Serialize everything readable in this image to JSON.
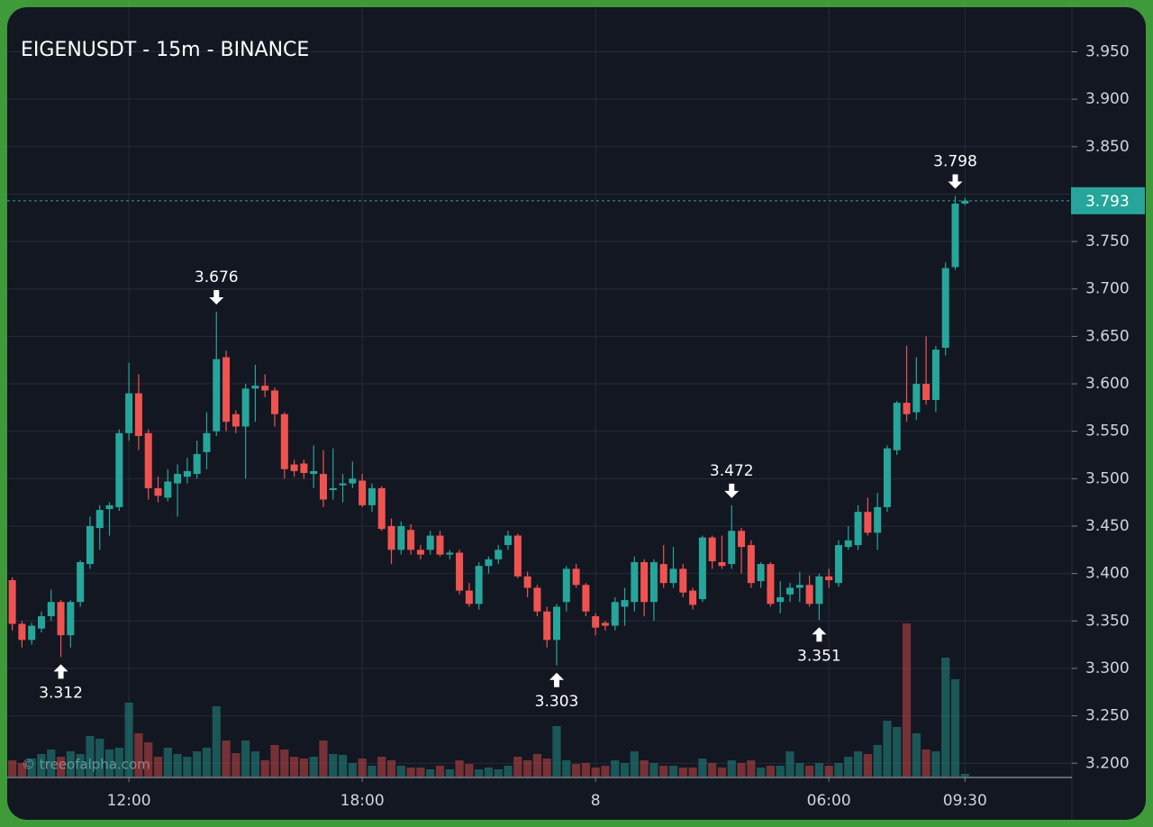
{
  "chart_data": {
    "type": "candlestick",
    "title": "EIGENUSDT - 15m - BINANCE",
    "watermark": "© treeofalpha.com",
    "up_color": "#26a69a",
    "down_color": "#ef5350",
    "last_price": 3.793,
    "last_price_color": "#26a69a",
    "grid": true,
    "x": [
      9,
      9.25,
      9.5,
      9.75,
      10,
      10.25,
      10.5,
      10.75,
      11,
      11.25,
      11.5,
      11.75,
      12,
      12.25,
      12.5,
      12.75,
      13,
      13.25,
      13.5,
      13.75,
      14,
      14.25,
      14.5,
      14.75,
      15,
      15.25,
      15.5,
      15.75,
      16,
      16.25,
      16.5,
      16.75,
      17,
      17.25,
      17.5,
      17.75,
      18,
      18.25,
      18.5,
      18.75,
      19,
      19.25,
      19.5,
      19.75,
      20,
      20.25,
      20.5,
      20.75,
      21,
      21.25,
      21.5,
      21.75,
      22,
      22.25,
      22.5,
      22.75,
      23,
      23.25,
      23.5,
      23.75,
      24,
      24.25,
      24.5,
      24.75,
      25,
      25.25,
      25.5,
      25.75,
      26,
      26.25,
      26.5,
      26.75,
      27,
      27.25,
      27.5,
      27.75,
      28,
      28.25,
      28.5,
      28.75,
      29,
      29.25,
      29.5,
      29.75,
      30,
      30.25,
      30.5,
      30.75,
      31,
      31.25,
      31.5,
      31.75,
      32,
      32.25,
      32.5,
      32.75,
      33,
      33.25,
      33.5
    ],
    "open": [
      3.393,
      3.347,
      3.33,
      3.342,
      3.355,
      3.37,
      3.335,
      3.37,
      3.41,
      3.448,
      3.468,
      3.47,
      3.548,
      3.59,
      3.548,
      3.49,
      3.48,
      3.495,
      3.502,
      3.505,
      3.528,
      3.55,
      3.628,
      3.568,
      3.555,
      3.595,
      3.598,
      3.593,
      3.568,
      3.515,
      3.516,
      3.505,
      3.505,
      3.488,
      3.493,
      3.495,
      3.498,
      3.472,
      3.49,
      3.45,
      3.425,
      3.446,
      3.425,
      3.425,
      3.44,
      3.42,
      3.422,
      3.382,
      3.368,
      3.408,
      3.415,
      3.43,
      3.44,
      3.397,
      3.385,
      3.36,
      3.33,
      3.37,
      3.405,
      3.388,
      3.355,
      3.348,
      3.345,
      3.365,
      3.37,
      3.412,
      3.37,
      3.41,
      3.39,
      3.405,
      3.382,
      3.373,
      3.438,
      3.412,
      3.41,
      3.445,
      3.43,
      3.392,
      3.41,
      3.37,
      3.378,
      3.385,
      3.388,
      3.368,
      3.397,
      3.39,
      3.428,
      3.43,
      3.465,
      3.443,
      3.47,
      3.53,
      3.58,
      3.57,
      3.6,
      3.583,
      3.638,
      3.723,
      3.79
    ],
    "high": [
      3.396,
      3.35,
      3.348,
      3.36,
      3.383,
      3.372,
      3.372,
      3.414,
      3.46,
      3.472,
      3.475,
      3.552,
      3.622,
      3.61,
      3.552,
      3.502,
      3.51,
      3.515,
      3.522,
      3.54,
      3.57,
      3.676,
      3.635,
      3.572,
      3.6,
      3.62,
      3.61,
      3.596,
      3.57,
      3.52,
      3.52,
      3.535,
      3.53,
      3.532,
      3.505,
      3.518,
      3.505,
      3.495,
      3.492,
      3.458,
      3.455,
      3.452,
      3.43,
      3.445,
      3.445,
      3.425,
      3.425,
      3.39,
      3.412,
      3.418,
      3.43,
      3.445,
      3.442,
      3.402,
      3.388,
      3.365,
      3.368,
      3.408,
      3.41,
      3.39,
      3.358,
      3.35,
      3.375,
      3.385,
      3.418,
      3.415,
      3.415,
      3.43,
      3.428,
      3.41,
      3.385,
      3.44,
      3.44,
      3.44,
      3.472,
      3.448,
      3.435,
      3.412,
      3.412,
      3.392,
      3.39,
      3.402,
      3.398,
      3.4,
      3.405,
      3.435,
      3.45,
      3.472,
      3.48,
      3.485,
      3.535,
      3.582,
      3.64,
      3.628,
      3.65,
      3.64,
      3.728,
      3.798,
      3.796
    ],
    "low": [
      3.34,
      3.322,
      3.325,
      3.338,
      3.35,
      3.312,
      3.322,
      3.365,
      3.405,
      3.425,
      3.44,
      3.466,
      3.54,
      3.53,
      3.478,
      3.475,
      3.476,
      3.46,
      3.495,
      3.5,
      3.51,
      3.545,
      3.55,
      3.548,
      3.5,
      3.56,
      3.586,
      3.555,
      3.5,
      3.502,
      3.5,
      3.49,
      3.47,
      3.478,
      3.475,
      3.49,
      3.47,
      3.465,
      3.445,
      3.41,
      3.42,
      3.42,
      3.415,
      3.42,
      3.418,
      3.415,
      3.378,
      3.365,
      3.362,
      3.4,
      3.41,
      3.425,
      3.395,
      3.375,
      3.355,
      3.322,
      3.303,
      3.36,
      3.385,
      3.355,
      3.335,
      3.34,
      3.34,
      3.345,
      3.36,
      3.355,
      3.35,
      3.385,
      3.385,
      3.375,
      3.362,
      3.37,
      3.405,
      3.405,
      3.405,
      3.4,
      3.385,
      3.385,
      3.365,
      3.358,
      3.37,
      3.37,
      3.365,
      3.351,
      3.385,
      3.386,
      3.425,
      3.425,
      3.44,
      3.425,
      3.465,
      3.525,
      3.56,
      3.562,
      3.578,
      3.57,
      3.63,
      3.72,
      3.788
    ],
    "close": [
      3.347,
      3.33,
      3.345,
      3.355,
      3.37,
      3.335,
      3.37,
      3.412,
      3.45,
      3.467,
      3.472,
      3.548,
      3.59,
      3.545,
      3.49,
      3.482,
      3.497,
      3.505,
      3.508,
      3.526,
      3.548,
      3.626,
      3.56,
      3.555,
      3.595,
      3.598,
      3.593,
      3.568,
      3.51,
      3.508,
      3.506,
      3.508,
      3.478,
      3.49,
      3.495,
      3.5,
      3.472,
      3.49,
      3.447,
      3.425,
      3.45,
      3.425,
      3.42,
      3.44,
      3.42,
      3.422,
      3.382,
      3.368,
      3.408,
      3.415,
      3.425,
      3.44,
      3.397,
      3.385,
      3.36,
      3.33,
      3.365,
      3.405,
      3.388,
      3.36,
      3.343,
      3.345,
      3.37,
      3.372,
      3.412,
      3.37,
      3.412,
      3.39,
      3.405,
      3.38,
      3.367,
      3.438,
      3.413,
      3.408,
      3.445,
      3.428,
      3.39,
      3.41,
      3.368,
      3.375,
      3.385,
      3.388,
      3.368,
      3.397,
      3.393,
      3.43,
      3.435,
      3.465,
      3.443,
      3.47,
      3.532,
      3.58,
      3.568,
      3.6,
      3.583,
      3.636,
      3.722,
      3.79,
      3.793
    ],
    "volume": [
      18,
      15,
      20,
      25,
      30,
      22,
      28,
      25,
      45,
      42,
      30,
      32,
      82,
      48,
      38,
      22,
      32,
      25,
      22,
      28,
      32,
      78,
      40,
      26,
      40,
      28,
      18,
      35,
      30,
      22,
      20,
      22,
      40,
      25,
      24,
      15,
      20,
      12,
      22,
      18,
      12,
      10,
      10,
      8,
      12,
      8,
      18,
      14,
      8,
      10,
      8,
      12,
      22,
      18,
      25,
      20,
      56,
      18,
      14,
      15,
      10,
      12,
      18,
      15,
      28,
      18,
      15,
      12,
      12,
      10,
      10,
      20,
      15,
      10,
      18,
      15,
      18,
      10,
      12,
      12,
      28,
      15,
      12,
      15,
      12,
      15,
      22,
      28,
      25,
      35,
      62,
      55,
      170,
      48,
      30,
      28,
      132,
      108,
      3
    ],
    "annotations": [
      {
        "value": 3.312,
        "x": 10.25,
        "position": "below"
      },
      {
        "value": 3.676,
        "x": 14.25,
        "position": "above"
      },
      {
        "value": 3.303,
        "x": 23,
        "position": "below"
      },
      {
        "value": 3.472,
        "x": 27.5,
        "position": "above"
      },
      {
        "value": 3.351,
        "x": 29.75,
        "position": "below"
      },
      {
        "value": 3.798,
        "x": 33.25,
        "position": "above"
      }
    ],
    "xlim": [
      8.87,
      36.25
    ],
    "xticks": [
      {
        "value": 12,
        "label": "12:00"
      },
      {
        "value": 18,
        "label": "18:00"
      },
      {
        "value": 24,
        "label": "8"
      },
      {
        "value": 30,
        "label": "06:00"
      },
      {
        "value": 33.5,
        "label": "09:30"
      }
    ],
    "ylim": [
      3.186,
      3.997
    ],
    "yticks": [
      {
        "value": 3.95,
        "label": "3.950"
      },
      {
        "value": 3.9,
        "label": "3.900"
      },
      {
        "value": 3.85,
        "label": "3.850"
      },
      {
        "value": 3.8,
        "label": "3.800"
      },
      {
        "value": 3.75,
        "label": "3.750"
      },
      {
        "value": 3.7,
        "label": "3.700"
      },
      {
        "value": 3.65,
        "label": "3.650"
      },
      {
        "value": 3.6,
        "label": "3.600"
      },
      {
        "value": 3.55,
        "label": "3.550"
      },
      {
        "value": 3.5,
        "label": "3.500"
      },
      {
        "value": 3.45,
        "label": "3.450"
      },
      {
        "value": 3.4,
        "label": "3.400"
      },
      {
        "value": 3.35,
        "label": "3.350"
      },
      {
        "value": 3.3,
        "label": "3.300"
      },
      {
        "value": 3.25,
        "label": "3.250"
      },
      {
        "value": 3.2,
        "label": "3.200"
      }
    ]
  }
}
